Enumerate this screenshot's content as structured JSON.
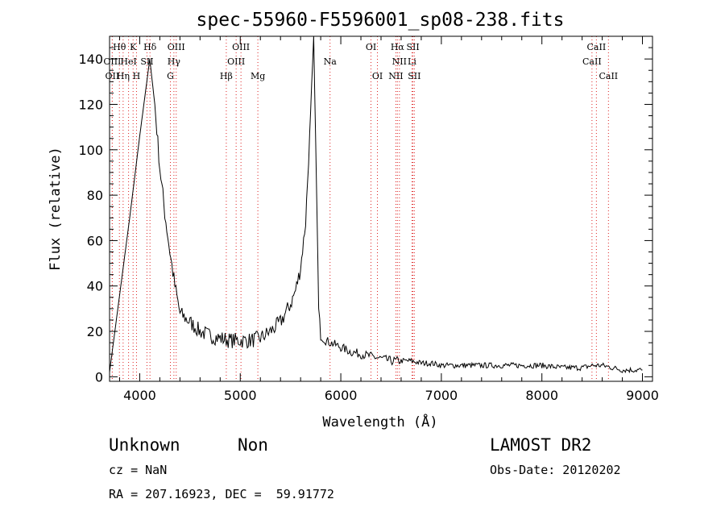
{
  "chart_data": {
    "type": "line",
    "title": "spec-55960-F5596001_sp08-238.fits",
    "xlabel": "Wavelength (Å)",
    "ylabel": "Flux (relative)",
    "xlim": [
      3700,
      9100
    ],
    "ylim": [
      -2,
      150
    ],
    "x_ticks": [
      4000,
      5000,
      6000,
      7000,
      8000,
      9000
    ],
    "y_ticks": [
      0,
      20,
      40,
      60,
      80,
      100,
      120,
      140
    ],
    "grid": false,
    "series": [
      {
        "x": [
          3700,
          3800,
          3900,
          4000,
          4100,
          4150,
          4200,
          4250,
          4300,
          4350,
          4400,
          4500,
          4600,
          4700,
          4800,
          4900,
          5000,
          5100,
          5200,
          5300,
          5400,
          5500,
          5550,
          5600,
          5650,
          5700,
          5730,
          5760,
          5780,
          5800,
          5850,
          5900,
          6000,
          6100,
          6200,
          6300,
          6400,
          6500,
          6600,
          6700,
          6800,
          6900,
          7000,
          7200,
          7400,
          7600,
          7800,
          8000,
          8200,
          8400,
          8500,
          8600,
          8700,
          8800,
          8900,
          9000
        ],
        "y": [
          2,
          36,
          70,
          106,
          140,
          120,
          92,
          72,
          55,
          40,
          28,
          24,
          20,
          18,
          17,
          16,
          16,
          16,
          17,
          20,
          24,
          32,
          38,
          48,
          68,
          115,
          150,
          80,
          30,
          18,
          16,
          15,
          13,
          11,
          10,
          9,
          8,
          7,
          7,
          7,
          6,
          6,
          5,
          5,
          5,
          5,
          5,
          5,
          4,
          4,
          5,
          5,
          4,
          3,
          3,
          3
        ]
      }
    ],
    "lines": [
      {
        "label": "Hθ",
        "w": 3798,
        "row": 0
      },
      {
        "label": "K",
        "w": 3934,
        "row": 0
      },
      {
        "label": "Hδ",
        "w": 4102,
        "row": 0
      },
      {
        "label": "OIII",
        "w": 4363,
        "row": 0
      },
      {
        "label": "OIII",
        "w": 5007,
        "row": 0
      },
      {
        "label": "OI",
        "w": 6300,
        "row": 0
      },
      {
        "label": "Hα",
        "w": 6563,
        "row": 0
      },
      {
        "label": "SII",
        "w": 6717,
        "row": 0
      },
      {
        "label": "CaII",
        "w": 8542,
        "row": 0
      },
      {
        "label": "OIII",
        "w": 3727,
        "row": 1
      },
      {
        "label": "HeI",
        "w": 3889,
        "row": 1
      },
      {
        "label": "SII",
        "w": 4072,
        "row": 1
      },
      {
        "label": "Hγ",
        "w": 4340,
        "row": 1
      },
      {
        "label": "OIII",
        "w": 4959,
        "row": 1
      },
      {
        "label": "Na",
        "w": 5893,
        "row": 1
      },
      {
        "label": "NII",
        "w": 6583,
        "row": 1
      },
      {
        "label": "Li",
        "w": 6708,
        "row": 1
      },
      {
        "label": "CaII",
        "w": 8498,
        "row": 1
      },
      {
        "label": "OII",
        "w": 3727,
        "row": 2
      },
      {
        "label": "Hη",
        "w": 3835,
        "row": 2
      },
      {
        "label": "H",
        "w": 3968,
        "row": 2
      },
      {
        "label": "G",
        "w": 4305,
        "row": 2
      },
      {
        "label": "Hβ",
        "w": 4861,
        "row": 2
      },
      {
        "label": "Mg",
        "w": 5175,
        "row": 2
      },
      {
        "label": "OI",
        "w": 6364,
        "row": 2
      },
      {
        "label": "NII",
        "w": 6548,
        "row": 2
      },
      {
        "label": "SII",
        "w": 6731,
        "row": 2
      },
      {
        "label": "CaII",
        "w": 8662,
        "row": 2
      }
    ]
  },
  "info": {
    "class": "Unknown",
    "subclass": "Non",
    "cz": "cz = NaN",
    "radec": "RA = 207.16923, DEC =  59.91772",
    "survey": "LAMOST DR2",
    "obsdate": "Obs-Date: 20120202"
  }
}
